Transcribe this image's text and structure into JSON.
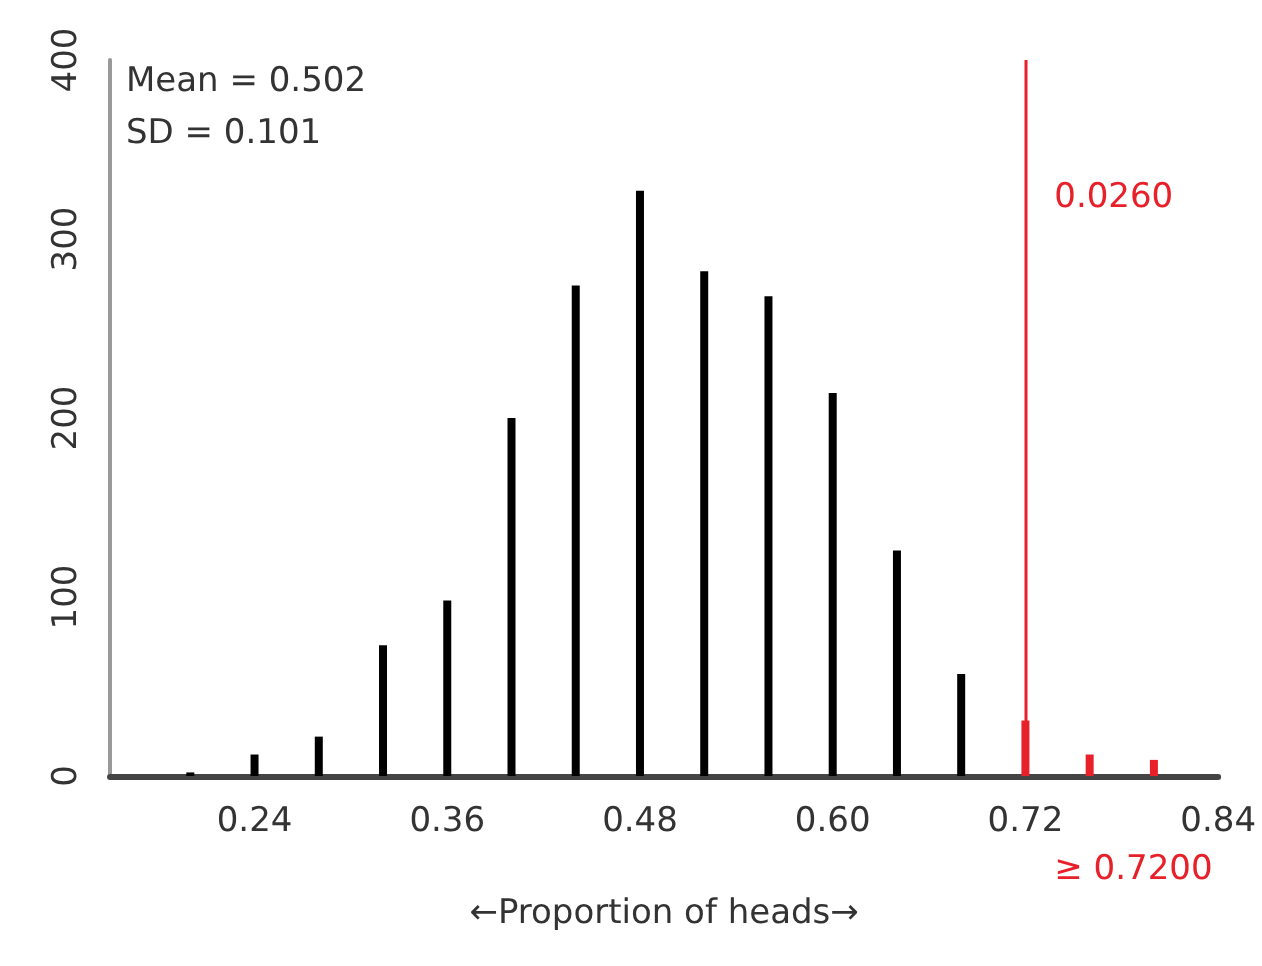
{
  "chart_data": {
    "type": "bar",
    "xlabel": "←Proportion of heads→",
    "series": [
      {
        "color": "#000000",
        "x": [
          0.2,
          0.24,
          0.28,
          0.32,
          0.36,
          0.4,
          0.44,
          0.48,
          0.52,
          0.56,
          0.6,
          0.64,
          0.68
        ],
        "values": [
          2,
          12,
          22,
          73,
          98,
          200,
          274,
          327,
          282,
          268,
          214,
          126,
          57
        ]
      },
      {
        "color": "#e8202a",
        "x": [
          0.72,
          0.76,
          0.8
        ],
        "values": [
          31,
          12,
          9
        ]
      }
    ],
    "xlim": [
      0.15,
      0.84
    ],
    "xticks": [
      {
        "value": 0.24,
        "label": "0.24"
      },
      {
        "value": 0.36,
        "label": "0.36"
      },
      {
        "value": 0.48,
        "label": "0.48"
      },
      {
        "value": 0.6,
        "label": "0.60"
      },
      {
        "value": 0.72,
        "label": "0.72"
      },
      {
        "value": 0.84,
        "label": "0.84"
      }
    ],
    "ylim": [
      0,
      400
    ],
    "yticks": [
      0,
      100,
      200,
      300,
      400
    ],
    "ref_lines": [
      {
        "axis": "x",
        "value": 0.72,
        "label": "≥ 0.7200",
        "color": "#e8202a"
      }
    ],
    "annotations": [
      "Mean = 0.502",
      "SD = 0.101",
      "0.0260"
    ],
    "grid": false
  }
}
